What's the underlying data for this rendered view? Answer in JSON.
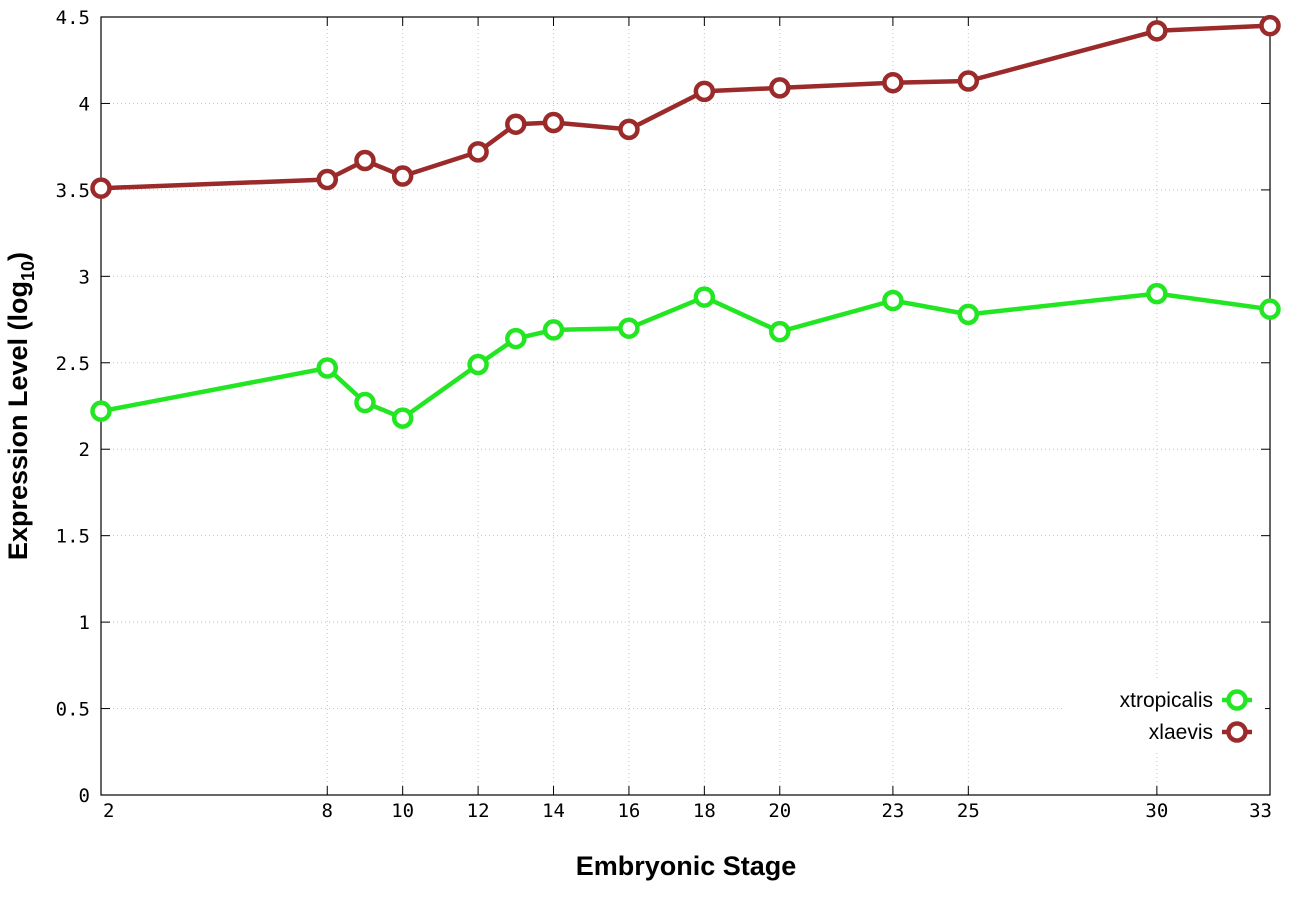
{
  "chart_data": {
    "type": "line",
    "xlabel": "Embryonic Stage",
    "ylabel": "Expression Level (log",
    "ylabel_subscript": "10",
    "ylabel_suffix": ")",
    "x": [
      2,
      8,
      9,
      10,
      12,
      13,
      14,
      16,
      18,
      20,
      23,
      25,
      30,
      33
    ],
    "xticks": [
      2,
      8,
      10,
      12,
      14,
      16,
      18,
      20,
      23,
      25,
      30,
      33
    ],
    "xlim": [
      2,
      33
    ],
    "ylim": [
      0,
      4.5
    ],
    "yticks": [
      "0",
      "0.5",
      "1",
      "1.5",
      "2",
      "2.5",
      "3",
      "3.5",
      "4",
      "4.5"
    ],
    "grid": true,
    "legend_position": "bottom-right",
    "series": [
      {
        "name": "xtropicalis",
        "color": "#22e622",
        "values": [
          2.22,
          2.47,
          2.27,
          2.18,
          2.49,
          2.64,
          2.69,
          2.7,
          2.88,
          2.68,
          2.86,
          2.78,
          2.9,
          2.81
        ]
      },
      {
        "name": "xlaevis",
        "color": "#9b2a2a",
        "values": [
          3.51,
          3.56,
          3.67,
          3.58,
          3.72,
          3.88,
          3.89,
          3.85,
          4.07,
          4.09,
          4.12,
          4.13,
          4.42,
          4.45
        ]
      }
    ]
  }
}
